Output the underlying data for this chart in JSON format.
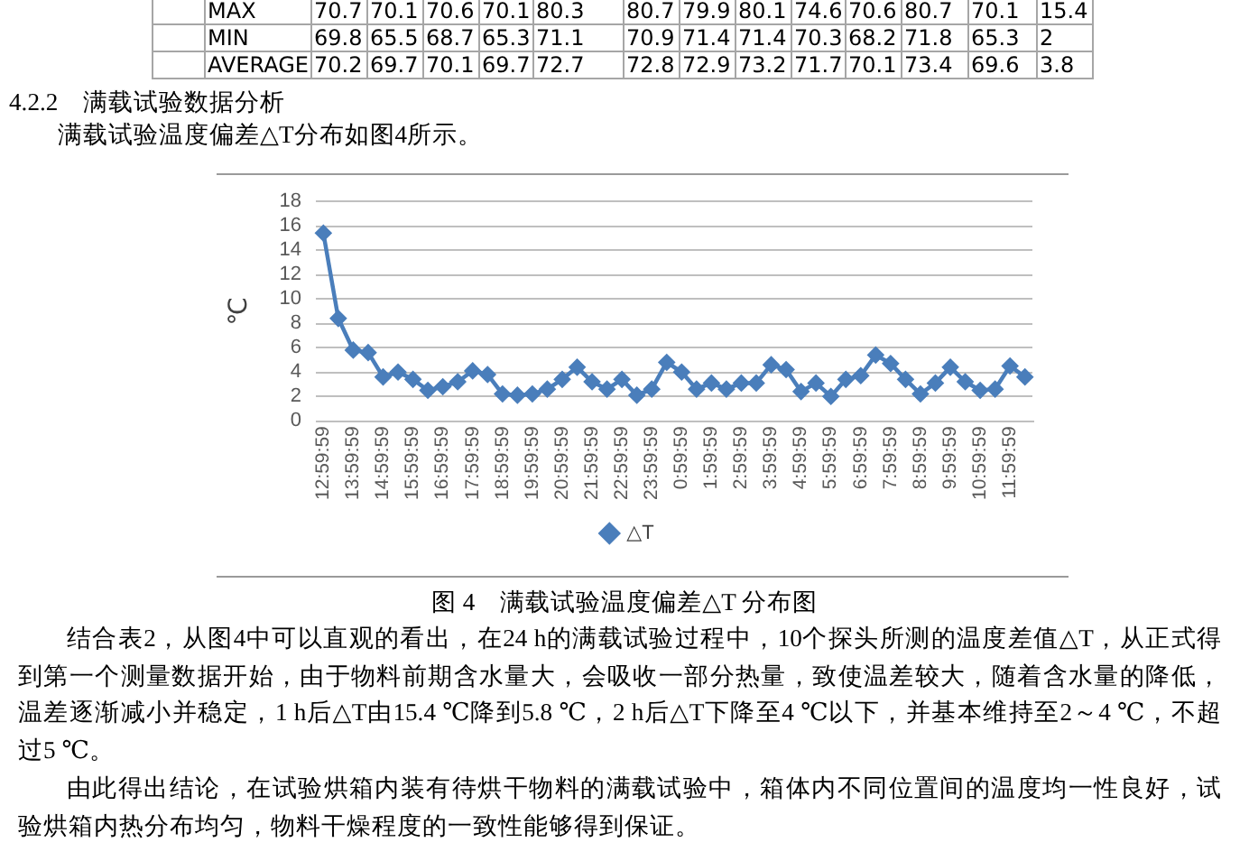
{
  "chart_data": [
    {
      "type": "other",
      "annotations": [
        "MAX",
        "70.7",
        "70.1",
        "70.6",
        "70.1",
        "80.3",
        "80.7",
        "79.9",
        "80.1",
        "74.6",
        "70.6",
        "80.7",
        "70.1",
        "15.4",
        "MIN",
        "69.8",
        "65.5",
        "68.7",
        "65.3",
        "71.1",
        "70.9",
        "71.4",
        "71.4",
        "70.3",
        "68.2",
        "71.8",
        "65.3",
        "2",
        "AVERAGE",
        "70.2",
        "69.7",
        "70.1",
        "69.7",
        "72.7",
        "72.8",
        "72.9",
        "73.2",
        "71.7",
        "70.1",
        "73.4",
        "69.6",
        "3.8"
      ]
    },
    {
      "type": "line",
      "title": "图 4　满载试验温度偏差△T 分布图",
      "ylabel": "℃",
      "annotations": [
        "4.2.2　满载试验数据分析",
        "满载试验温度偏差△T分布如图4所示。",
        "结合表2，从图4中可以直观的看出，在24 h的满载试验过程中，10个探头所测的温度差值△T，从正式得到第一个测量数据开始，由于物料前期含水量大，会吸收一部分热量，致使温差较大，随着含水量的降低，温差逐渐减小并稳定，1 h后△T由15.4 ℃降到5.8 ℃，2 h后△T下降至4 ℃以下，并基本维持至2～4 ℃，不超过5 ℃。",
        "由此得出结论，在试验烘箱内装有待烘干物料的满载试验中，箱体内不同位置间的温度均一性良好，试验烘箱内热分布均匀，物料干燥程度的一致性能够得到保证。"
      ],
      "categories": [
        "12:59:59",
        null,
        "13:59:59",
        null,
        "14:59:59",
        null,
        "15:59:59",
        null,
        "16:59:59",
        null,
        "17:59:59",
        null,
        "18:59:59",
        null,
        "19:59:59",
        null,
        "20:59:59",
        null,
        "21:59:59",
        null,
        "22:59:59",
        null,
        "23:59:59",
        null,
        "0:59:59",
        null,
        "1:59:59",
        null,
        "2:59:59",
        null,
        "3:59:59",
        null,
        "4:59:59",
        null,
        "5:59:59",
        null,
        "6:59:59",
        null,
        "7:59:59",
        null,
        "8:59:59",
        null,
        "9:59:59",
        null,
        "10:59:59",
        null,
        "11:59:59",
        null
      ],
      "series": [
        {
          "name": "△T",
          "color": "#4a7ebb",
          "values": [
            15.4,
            8.4,
            5.8,
            5.6,
            3.6,
            4,
            3.4,
            2.5,
            2.8,
            3.2,
            4.1,
            3.8,
            2.2,
            2.1,
            2.2,
            2.6,
            3.4,
            4.4,
            3.2,
            2.6,
            3.4,
            2.1,
            2.6,
            4.8,
            4,
            2.6,
            3.1,
            2.6,
            3.1,
            3.1,
            4.6,
            4.2,
            2.4,
            3.1,
            2,
            3.4,
            3.7,
            5.4,
            4.7,
            3.4,
            2.2,
            3.1,
            4.4,
            3.2,
            2.5,
            2.6,
            4.5,
            3.6
          ]
        }
      ],
      "ylim": [
        0,
        18
      ],
      "yticks": [
        0,
        2,
        4,
        6,
        8,
        10,
        12,
        14,
        16,
        18
      ],
      "grid": "y",
      "legend": "bottom",
      "marker": "diamond"
    }
  ]
}
